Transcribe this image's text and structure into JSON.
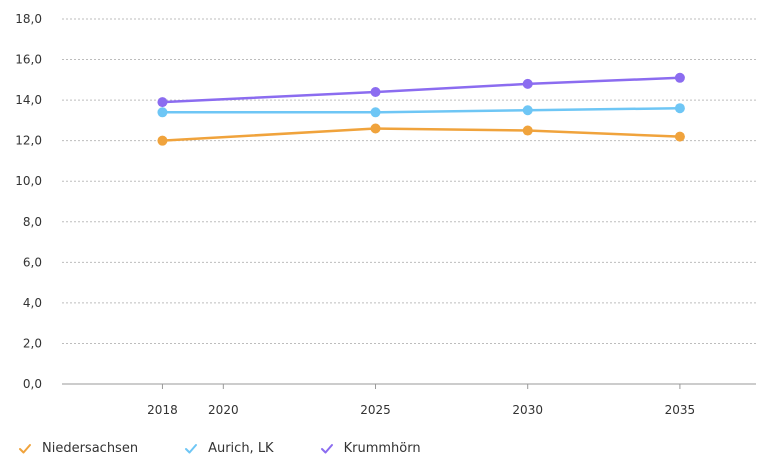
{
  "chart_data": {
    "type": "line",
    "title": "",
    "xlabel": "",
    "ylabel": "",
    "categories": [
      "2018",
      "2025",
      "2030",
      "2035"
    ],
    "x": [
      2018,
      2025,
      2030,
      2035
    ],
    "x_ticks": [
      "2018",
      "2020",
      "2025",
      "2030",
      "2035"
    ],
    "xlim": [
      2014.7,
      2037.5
    ],
    "ylim": [
      0,
      18
    ],
    "y_ticks": [
      "0,0",
      "2,0",
      "4,0",
      "6,0",
      "8,0",
      "10,0",
      "12,0",
      "14,0",
      "16,0",
      "18,0"
    ],
    "grid": true,
    "legend_position": "bottom-left",
    "series": [
      {
        "name": "Niedersachsen",
        "color": "#f0a33c",
        "values": [
          12.0,
          12.6,
          12.5,
          12.2
        ]
      },
      {
        "name": "Aurich, LK",
        "color": "#6ec6f5",
        "values": [
          13.4,
          13.4,
          13.5,
          13.6
        ]
      },
      {
        "name": "Krummhörn",
        "color": "#8b6cf0",
        "values": [
          13.9,
          14.4,
          14.8,
          15.1
        ]
      }
    ]
  }
}
